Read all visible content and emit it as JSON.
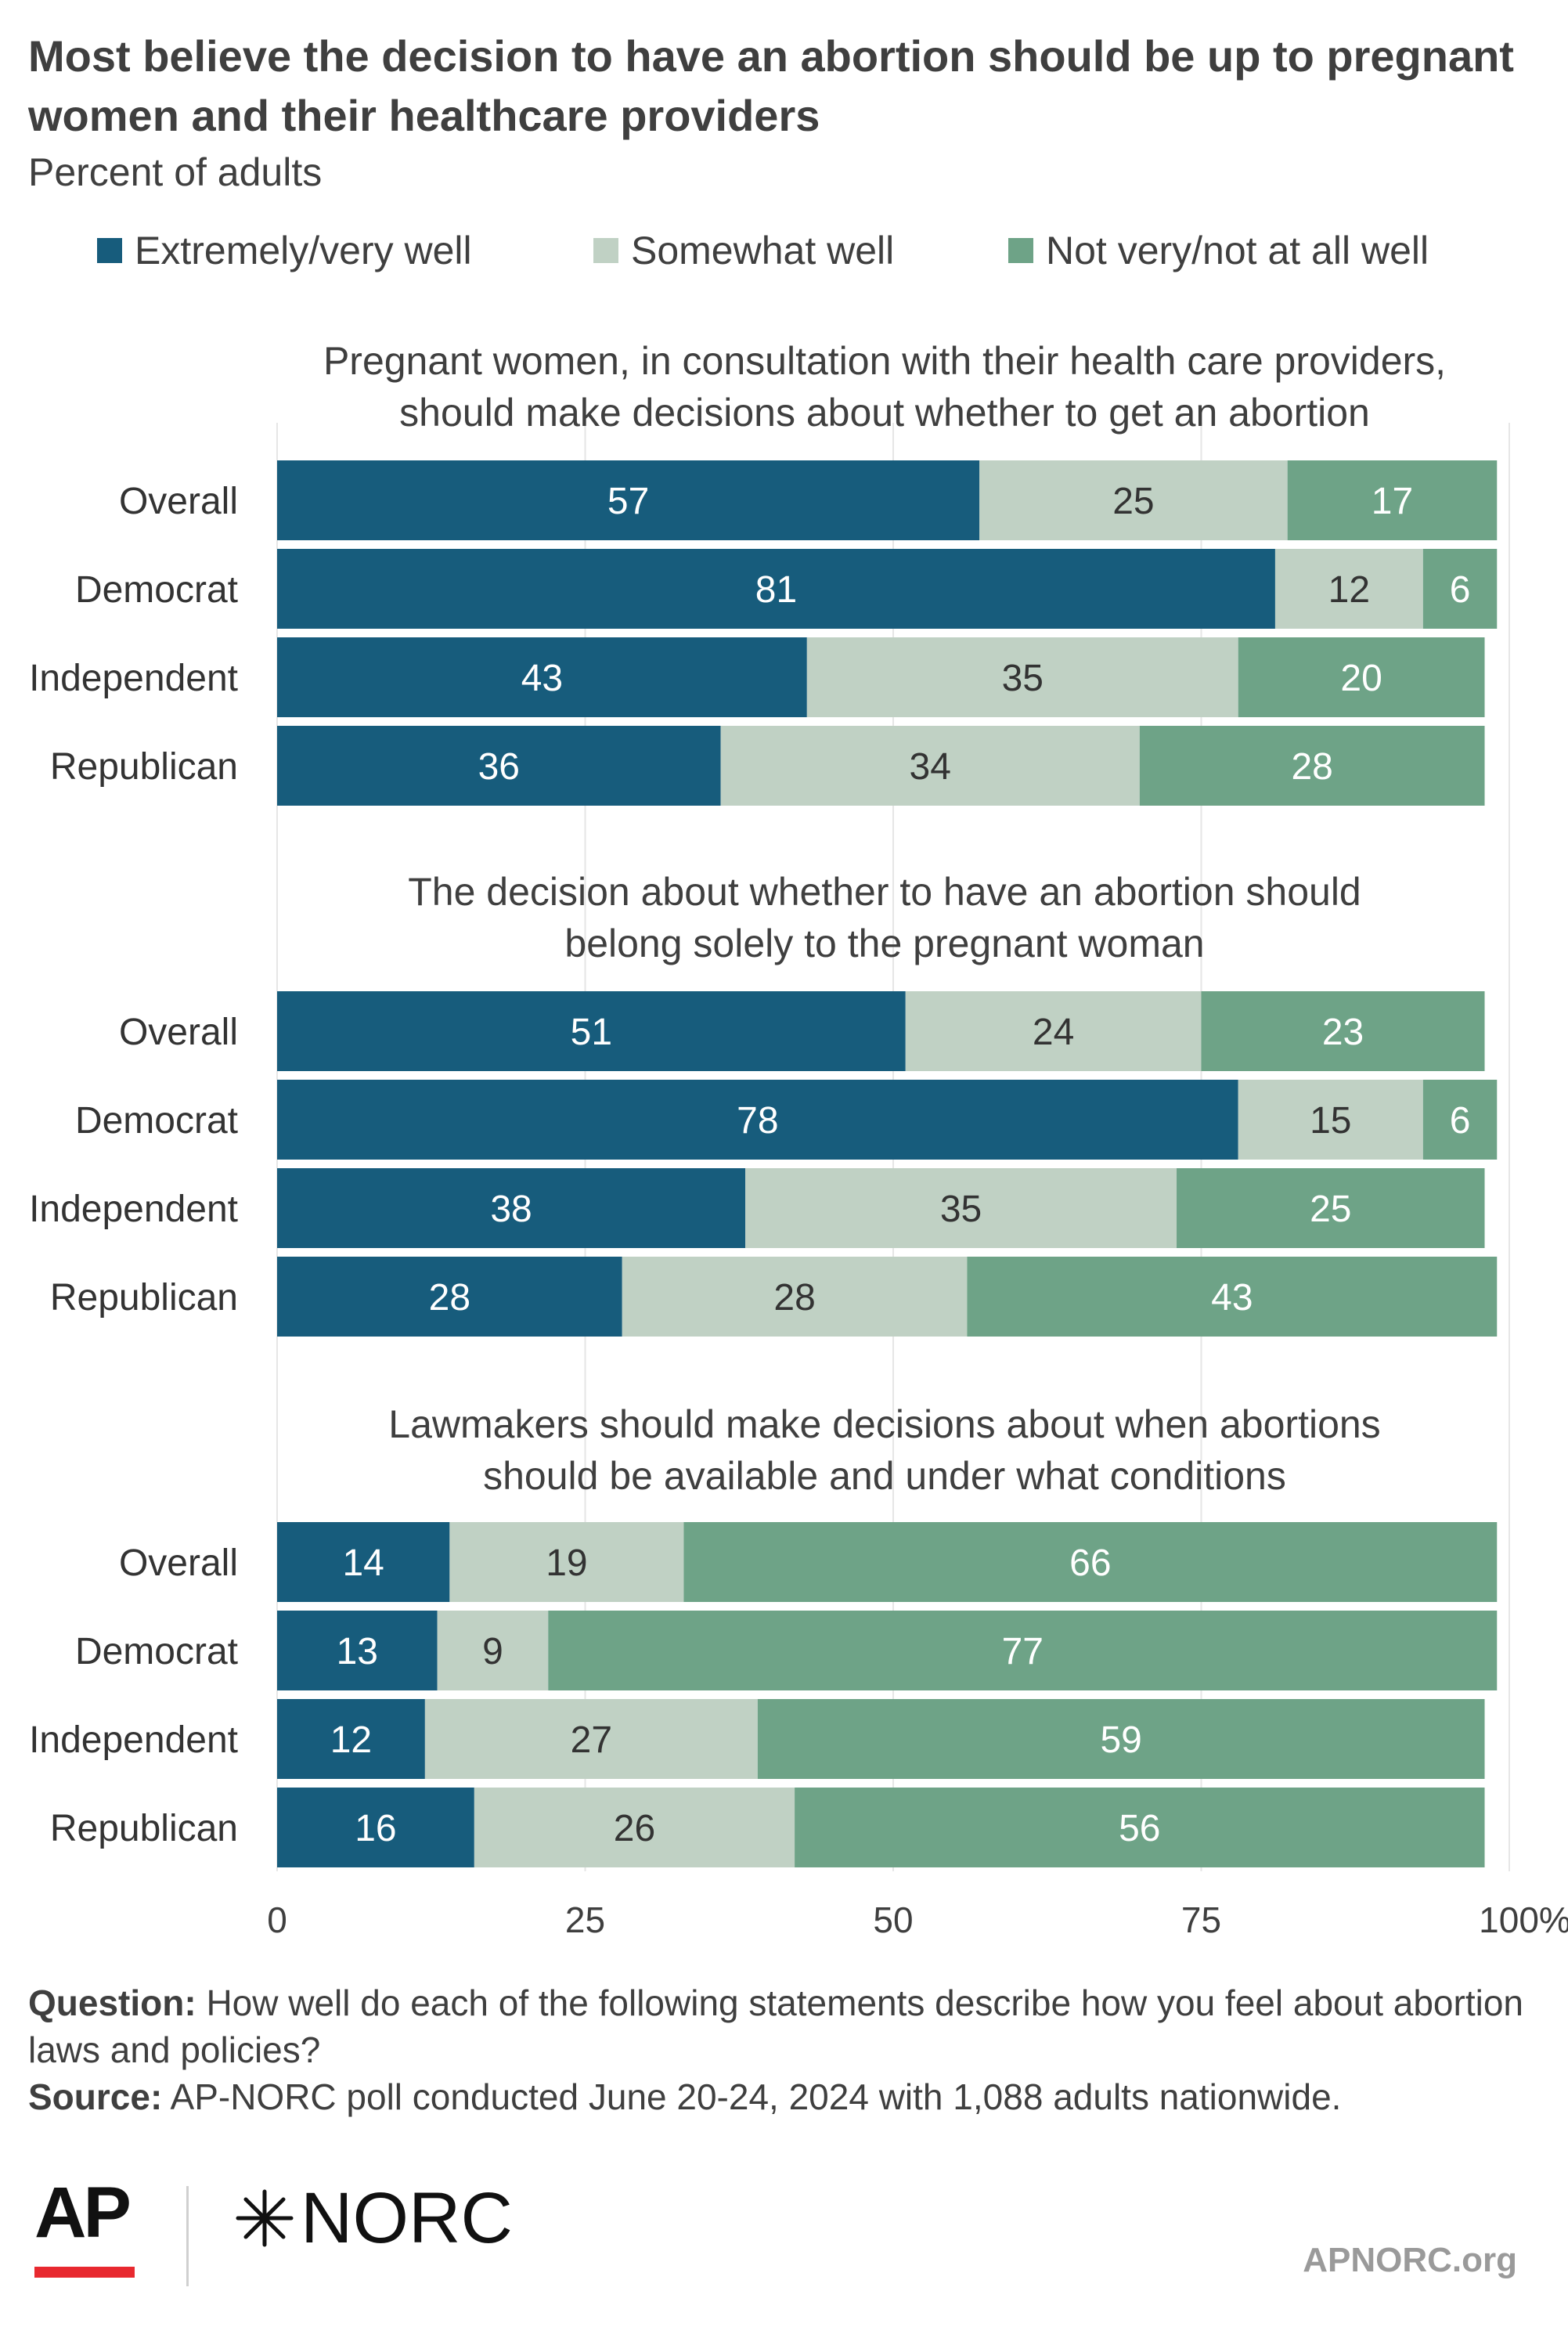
{
  "title": "Most believe the decision to have an abortion should be up to pregnant women and their healthcare providers",
  "subtitle": "Percent of adults",
  "legend": [
    {
      "label": "Extremely/very well",
      "color": "#175c7c"
    },
    {
      "label": "Somewhat well",
      "color": "#c0d1c4"
    },
    {
      "label": "Not very/not at all well",
      "color": "#6ea387"
    }
  ],
  "footnote": {
    "question_label": "Question:",
    "question_text": "How well do each of the following statements describe how you feel about abortion laws and policies?",
    "source_label": "Source:",
    "source_text": "AP-NORC poll conducted June 20-24, 2024 with 1,088 adults nationwide."
  },
  "logos": {
    "ap": "AP",
    "norc": "NORC",
    "site": "APNORC.org"
  },
  "chart_data": {
    "type": "bar",
    "orientation": "horizontal",
    "stacked": true,
    "xlim": [
      0,
      100
    ],
    "xticks": [
      {
        "value": 0,
        "label": "0"
      },
      {
        "value": 25,
        "label": "25"
      },
      {
        "value": 50,
        "label": "50"
      },
      {
        "value": 75,
        "label": "75"
      },
      {
        "value": 100,
        "label": "100%"
      }
    ],
    "series_names": [
      "Extremely/very well",
      "Somewhat well",
      "Not very/not at all well"
    ],
    "panels": [
      {
        "title_lines": [
          "Pregnant women, in consultation with their health care providers,",
          "should make decisions about whether to get an abortion"
        ],
        "categories": [
          "Overall",
          "Democrat",
          "Independent",
          "Republican"
        ],
        "values": [
          [
            57,
            25,
            17
          ],
          [
            81,
            12,
            6
          ],
          [
            43,
            35,
            20
          ],
          [
            36,
            34,
            28
          ]
        ]
      },
      {
        "title_lines": [
          "The decision about whether to have an abortion should",
          "belong solely to the pregnant woman"
        ],
        "categories": [
          "Overall",
          "Democrat",
          "Independent",
          "Republican"
        ],
        "values": [
          [
            51,
            24,
            23
          ],
          [
            78,
            15,
            6
          ],
          [
            38,
            35,
            25
          ],
          [
            28,
            28,
            43
          ]
        ]
      },
      {
        "title_lines": [
          "Lawmakers should make decisions about when abortions",
          "should be available and under what conditions"
        ],
        "categories": [
          "Overall",
          "Democrat",
          "Independent",
          "Republican"
        ],
        "values": [
          [
            14,
            19,
            66
          ],
          [
            13,
            9,
            77
          ],
          [
            12,
            27,
            59
          ],
          [
            16,
            26,
            56
          ]
        ]
      }
    ]
  }
}
